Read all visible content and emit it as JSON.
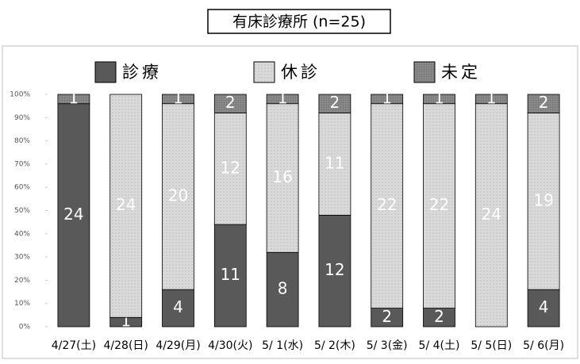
{
  "chart_data": {
    "type": "bar",
    "stacked": "percent",
    "title": "有床診療所 (n=25)",
    "categories": [
      "4/27(土)",
      "4/28(日)",
      "4/29(月)",
      "4/30(火)",
      "5/ 1(水)",
      "5/ 2(木)",
      "5/ 3(金)",
      "5/ 4(土)",
      "5/ 5(日)",
      "5/ 6(月)"
    ],
    "series": [
      {
        "name": "診療",
        "color": "#595959",
        "values": [
          24,
          1,
          4,
          11,
          8,
          12,
          2,
          2,
          0,
          4
        ]
      },
      {
        "name": "休診",
        "color": "#d9d9d9",
        "values": [
          0,
          24,
          20,
          12,
          16,
          11,
          22,
          22,
          24,
          19
        ]
      },
      {
        "name": "未定",
        "color": "#7f7f7f",
        "values": [
          1,
          0,
          1,
          2,
          1,
          2,
          1,
          1,
          1,
          2
        ]
      }
    ],
    "ylim": [
      0,
      100
    ],
    "yticks": [
      {
        "value": 0,
        "label": "0%"
      },
      {
        "value": 10,
        "label": "10%"
      },
      {
        "value": 20,
        "label": "20%"
      },
      {
        "value": 30,
        "label": "30%"
      },
      {
        "value": 40,
        "label": "40%"
      },
      {
        "value": 50,
        "label": "50%"
      },
      {
        "value": 60,
        "label": "60%"
      },
      {
        "value": 70,
        "label": "70%"
      },
      {
        "value": 80,
        "label": "80%"
      },
      {
        "value": 90,
        "label": "90%"
      },
      {
        "value": 100,
        "label": "100%"
      }
    ],
    "legend": "top"
  }
}
